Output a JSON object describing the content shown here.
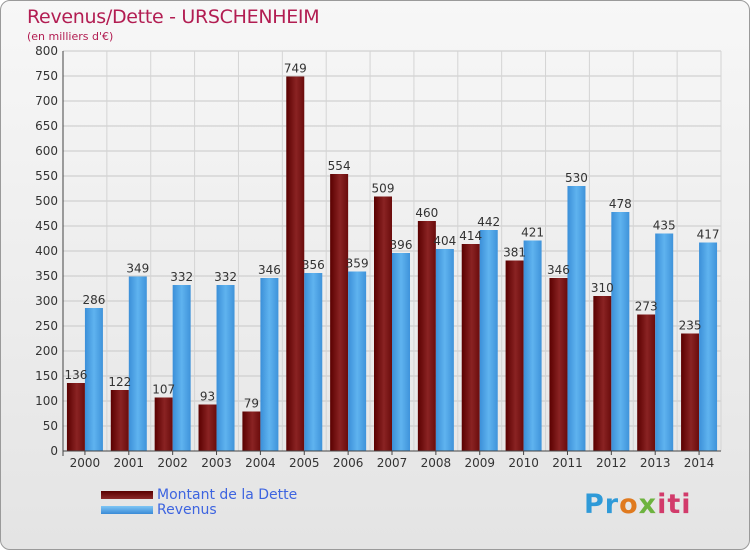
{
  "header": {
    "title": "Revenus/Dette - URSCHENHEIM",
    "subtitle": "(en milliers d'€)"
  },
  "legend": {
    "debt_label": "Montant de la Dette",
    "revenue_label": "Revenus"
  },
  "logo": {
    "text": "Proxiti"
  },
  "colors": {
    "debt": "#7a1a1a",
    "revenue": "#4aa3e8",
    "title": "#b21d52",
    "legend_text": "#3d64e0"
  },
  "chart_data": {
    "type": "bar",
    "categories": [
      "2000",
      "2001",
      "2002",
      "2003",
      "2004",
      "2005",
      "2006",
      "2007",
      "2008",
      "2009",
      "2010",
      "2011",
      "2012",
      "2013",
      "2014"
    ],
    "series": [
      {
        "name": "Montant de la Dette",
        "values": [
          136,
          122,
          107,
          93,
          79,
          749,
          554,
          509,
          460,
          414,
          381,
          346,
          310,
          273,
          235
        ]
      },
      {
        "name": "Revenus",
        "values": [
          286,
          349,
          332,
          332,
          346,
          356,
          359,
          396,
          404,
          442,
          421,
          530,
          478,
          435,
          417
        ]
      }
    ],
    "ylim": [
      0,
      800
    ],
    "yticks": [
      0,
      50,
      100,
      150,
      200,
      250,
      300,
      350,
      400,
      450,
      500,
      550,
      600,
      650,
      700,
      750,
      800
    ],
    "grid": true,
    "legend_position": "bottom-left"
  }
}
